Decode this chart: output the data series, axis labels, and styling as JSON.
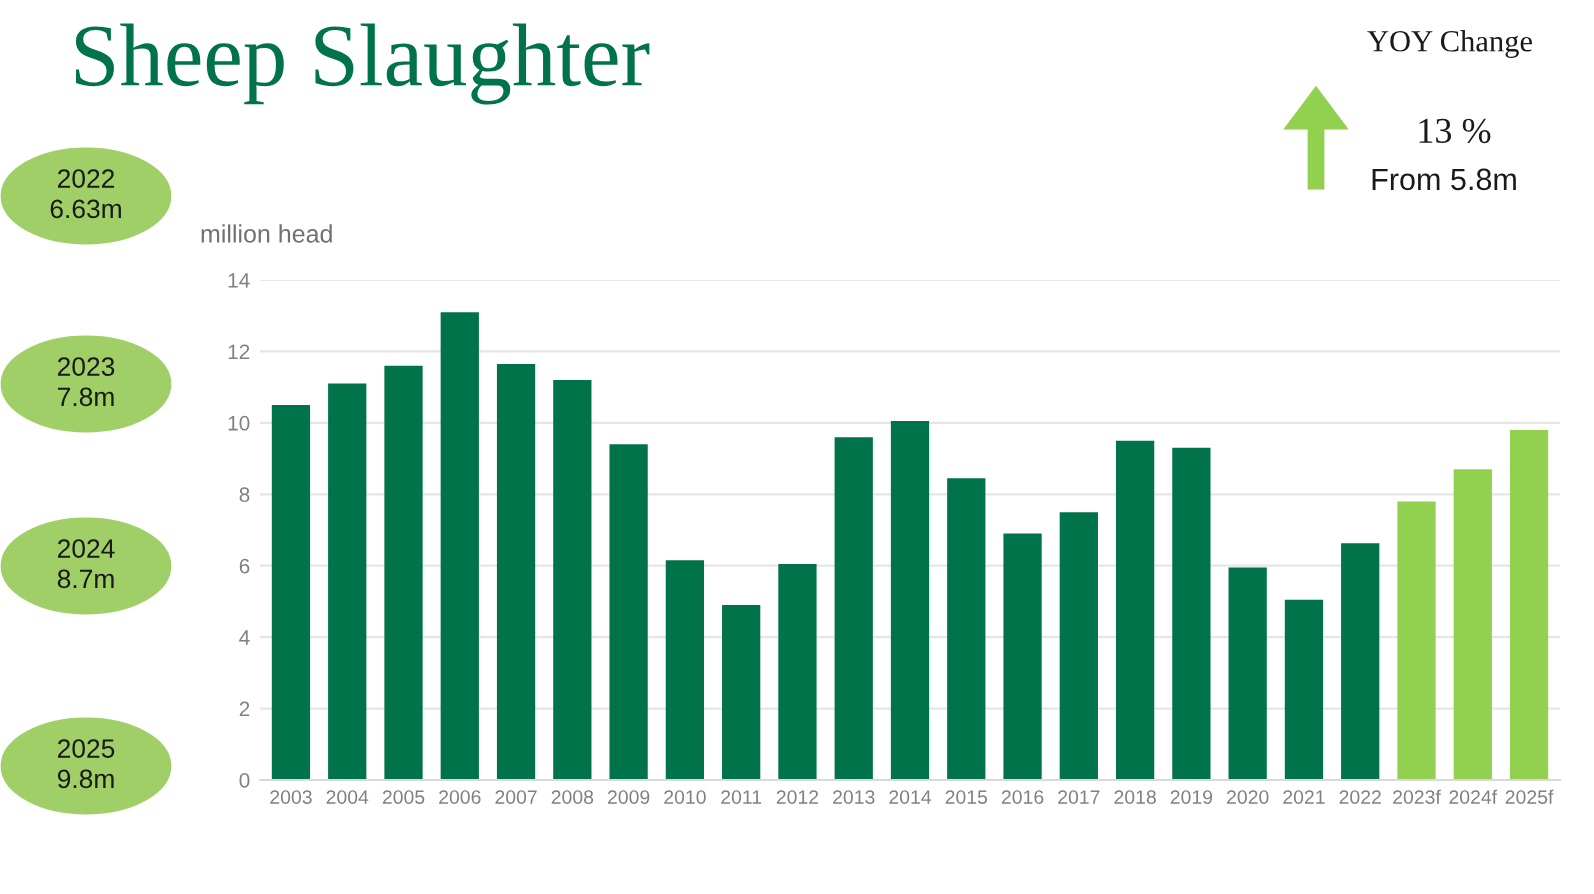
{
  "chart_data": {
    "type": "bar",
    "title": "Sheep Slaughter",
    "ylabel": "million head",
    "categories": [
      "2003",
      "2004",
      "2005",
      "2006",
      "2007",
      "2008",
      "2009",
      "2010",
      "2011",
      "2012",
      "2013",
      "2014",
      "2015",
      "2016",
      "2017",
      "2018",
      "2019",
      "2020",
      "2021",
      "2022",
      "2023f",
      "2024f",
      "2025f"
    ],
    "values": [
      10.5,
      11.1,
      11.6,
      13.1,
      11.65,
      11.2,
      9.4,
      6.15,
      4.9,
      6.05,
      9.6,
      10.05,
      8.45,
      6.9,
      7.5,
      9.5,
      9.3,
      5.95,
      5.05,
      6.63,
      7.8,
      8.7,
      9.8
    ],
    "colors": [
      "#00734a",
      "#00734a",
      "#00734a",
      "#00734a",
      "#00734a",
      "#00734a",
      "#00734a",
      "#00734a",
      "#00734a",
      "#00734a",
      "#00734a",
      "#00734a",
      "#00734a",
      "#00734a",
      "#00734a",
      "#00734a",
      "#00734a",
      "#00734a",
      "#00734a",
      "#00734a",
      "#92d050",
      "#92d050",
      "#92d050"
    ],
    "ylim": [
      0,
      14
    ],
    "yticks": [
      0,
      2,
      4,
      6,
      8,
      10,
      12,
      14
    ],
    "grid": "y",
    "annotations": [
      "2022\n6.63m",
      "2023\n7.8m",
      "2024\n8.7m",
      "2025\n9.8m",
      "YOY Change",
      "13 %",
      "From 5.8m"
    ]
  }
}
